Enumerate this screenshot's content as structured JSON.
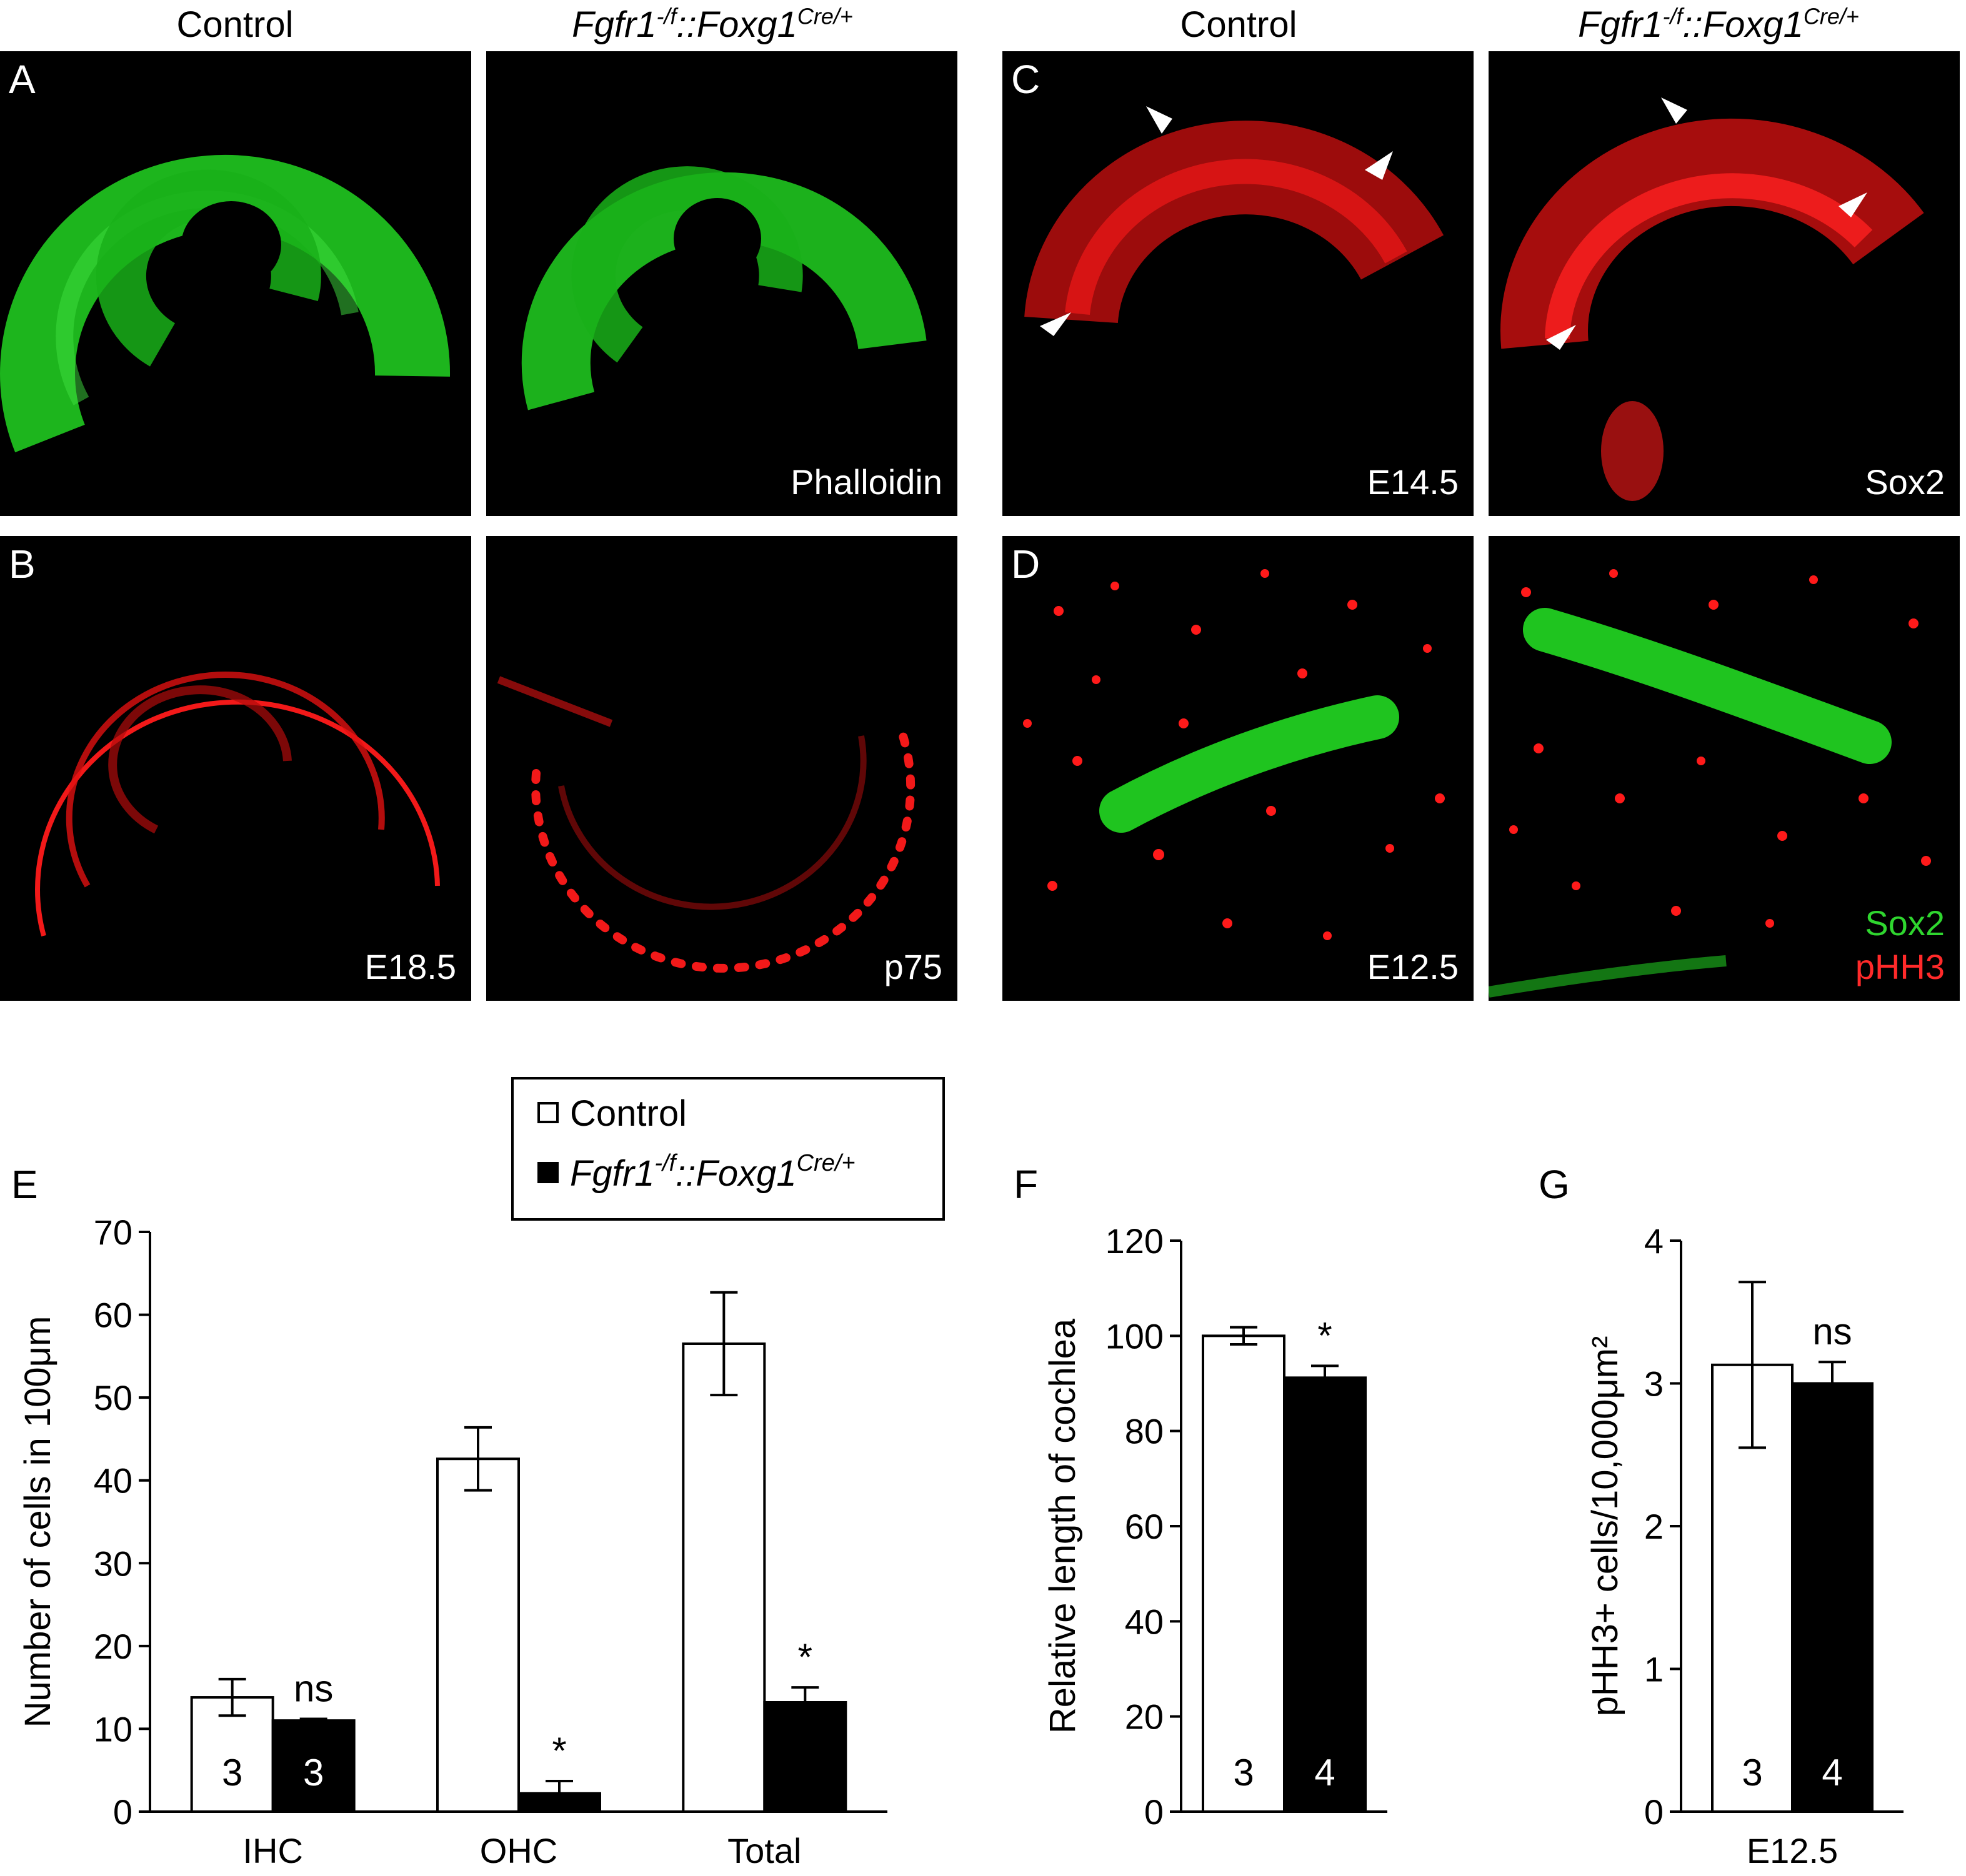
{
  "headers": {
    "control_left": "Control",
    "mutant_left_base": "Fgfr1",
    "mutant_left_sup1": "-/f",
    "mutant_left_mid": "::Foxg1",
    "mutant_left_sup2": "Cre/+",
    "control_right": "Control",
    "mutant_right_base": "Fgfr1",
    "mutant_right_sup1": "-/f",
    "mutant_right_mid": "::Foxg1",
    "mutant_right_sup2": "Cre/+"
  },
  "panels": {
    "A": {
      "label": "A",
      "right_label": "Phalloidin"
    },
    "B": {
      "label": "B",
      "left_label": "E18.5",
      "right_label": "p75"
    },
    "C": {
      "label": "C",
      "left_label": "E14.5",
      "right_label": "Sox2"
    },
    "D": {
      "label": "D",
      "left_label": "E12.5",
      "right_label_1": "Sox2",
      "right_label_2": "pHH3"
    }
  },
  "legend": {
    "control": "Control",
    "mutant_base": "Fgfr1",
    "mutant_sup1": "-/f",
    "mutant_mid": "::Foxg1",
    "mutant_sup2": "Cre/+"
  },
  "colors": {
    "green_stain": "#1fc41f",
    "red_stain": "#ff1a1a",
    "control_bar": "#ffffff",
    "mutant_bar": "#000000"
  },
  "chart_data": [
    {
      "type": "bar",
      "panel": "E",
      "ylabel": "Number of cells in 100μm",
      "categories": [
        "IHC",
        "OHC",
        "Total"
      ],
      "ylim": [
        0,
        70
      ],
      "yticks": [
        0,
        10,
        20,
        30,
        40,
        50,
        60,
        70
      ],
      "series": [
        {
          "name": "Control",
          "values": [
            13.8,
            42.6,
            56.5
          ],
          "errors": [
            2.2,
            3.8,
            6.2
          ]
        },
        {
          "name": "Fgfr1-/f::Foxg1Cre/+",
          "values": [
            11.0,
            2.2,
            13.2
          ],
          "errors": [
            0.2,
            1.5,
            1.8
          ]
        }
      ],
      "annotations": [
        {
          "category": "IHC",
          "series": 1,
          "text": "ns"
        },
        {
          "category": "OHC",
          "series": 1,
          "text": "*"
        },
        {
          "category": "Total",
          "series": 1,
          "text": "*"
        }
      ],
      "bar_labels": [
        {
          "category": "IHC",
          "series": 0,
          "text": "3"
        },
        {
          "category": "IHC",
          "series": 1,
          "text": "3"
        }
      ]
    },
    {
      "type": "bar",
      "panel": "F",
      "ylabel": "Relative length of cochlea",
      "categories": [
        ""
      ],
      "ylim": [
        0,
        120
      ],
      "yticks": [
        0,
        20,
        40,
        60,
        80,
        100,
        120
      ],
      "series": [
        {
          "name": "Control",
          "values": [
            100.0
          ],
          "errors": [
            1.8
          ]
        },
        {
          "name": "Fgfr1-/f::Foxg1Cre/+",
          "values": [
            91.2
          ],
          "errors": [
            2.5
          ]
        }
      ],
      "annotations": [
        {
          "series": 1,
          "text": "*"
        }
      ],
      "bar_labels": [
        {
          "series": 0,
          "text": "3"
        },
        {
          "series": 1,
          "text": "4"
        }
      ]
    },
    {
      "type": "bar",
      "panel": "G",
      "ylabel": "pHH3+ cells/10,000μm²",
      "categories": [
        "E12.5"
      ],
      "ylim": [
        0,
        4
      ],
      "yticks": [
        0,
        1,
        2,
        3,
        4
      ],
      "series": [
        {
          "name": "Control",
          "values": [
            3.13
          ],
          "errors": [
            0.58
          ]
        },
        {
          "name": "Fgfr1-/f::Foxg1Cre/+",
          "values": [
            3.0
          ],
          "errors": [
            0.15
          ]
        }
      ],
      "annotations": [
        {
          "series": 1,
          "text": "ns"
        }
      ],
      "bar_labels": [
        {
          "series": 0,
          "text": "3"
        },
        {
          "series": 1,
          "text": "4"
        }
      ]
    }
  ]
}
